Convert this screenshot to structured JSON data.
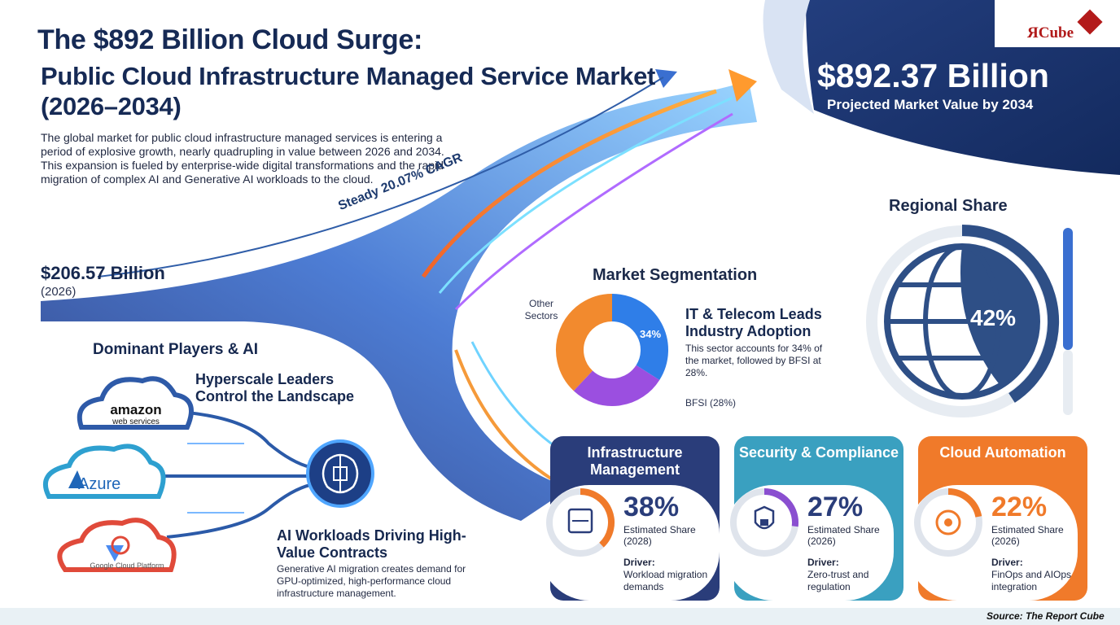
{
  "title": {
    "line1": "The $892 Billion Cloud Surge:",
    "line2": "Public Cloud Infrastructure Managed Service Market (2026–2034)"
  },
  "intro": "The global market for public cloud infrastructure managed services is entering a period of explosive growth, nearly quadrupling in value between 2026 and 2034. This expansion is fueled by enterprise-wide digital transformations and the rapid migration of complex AI and Generative AI workloads to the cloud.",
  "brand": {
    "logo_text": "ЯCube"
  },
  "growth": {
    "cagr_label": "Steady 20.07% CAGR",
    "start_value": "$206.57 Billion",
    "start_year": "(2026)",
    "end_value": "$892.37 Billion",
    "end_label": "Projected Market Value by 2034"
  },
  "regional": {
    "title": "Regional Share",
    "pct_label": "42%"
  },
  "segmentation": {
    "title": "Market Segmentation",
    "donut_pct_label": "34%",
    "other_label": "Other Sectors",
    "bfsi_label": "BFSI (28%)",
    "it_heading": "IT & Telecom Leads Industry Adoption",
    "it_text": "This sector accounts for 34% of the market, followed by BFSI at 28%."
  },
  "players": {
    "title": "Dominant Players & AI",
    "hyperscale": "Hyperscale Leaders Control the Landscape",
    "aws_line1": "amazon",
    "aws_line2": "web services",
    "azure": "Azure",
    "gcp": "Google Cloud Platform",
    "ai_heading": "AI Workloads Driving High-Value Contracts",
    "ai_text": "Generative AI migration creates demand for GPU-optimized, high-performance cloud infrastructure management."
  },
  "cards": [
    {
      "title": "Infrastructure Management",
      "pct": "38%",
      "estimated": "Estimated Share (2028)",
      "driver_label": "Driver:",
      "driver": "Workload migration demands",
      "color": "#2a3d7a"
    },
    {
      "title": "Security & Compliance",
      "pct": "27%",
      "estimated": "Estimated Share (2026)",
      "driver_label": "Driver:",
      "driver": "Zero-trust and regulation",
      "color": "#3aa0c0"
    },
    {
      "title": "Cloud Automation",
      "pct": "22%",
      "estimated": "Estimated Share (2026)",
      "driver_label": "Driver:",
      "driver": "FinOps and AIOps integration",
      "color": "#f07a2a"
    }
  ],
  "source": "Source: The Report Cube",
  "chart_data": [
    {
      "type": "line",
      "x": [
        2026,
        2034
      ],
      "values": [
        206.57,
        892.37
      ],
      "annotations": [
        "Steady 20.07% CAGR"
      ]
    },
    {
      "type": "pie",
      "categories": [
        "IT & Telecom",
        "BFSI",
        "Other Sectors"
      ],
      "values": [
        34,
        28,
        38
      ],
      "colors": [
        "#2f7ee8",
        "#9b4fe0",
        "#f28a2e"
      ]
    },
    {
      "type": "pie",
      "title": "Regional Share",
      "values": [
        42,
        58
      ],
      "colors": [
        "#2e4f86",
        "#dde3ea"
      ]
    },
    {
      "type": "bar",
      "categories": [
        "Infrastructure Management",
        "Security & Compliance",
        "Cloud Automation"
      ],
      "values": [
        38,
        27,
        22
      ]
    }
  ]
}
